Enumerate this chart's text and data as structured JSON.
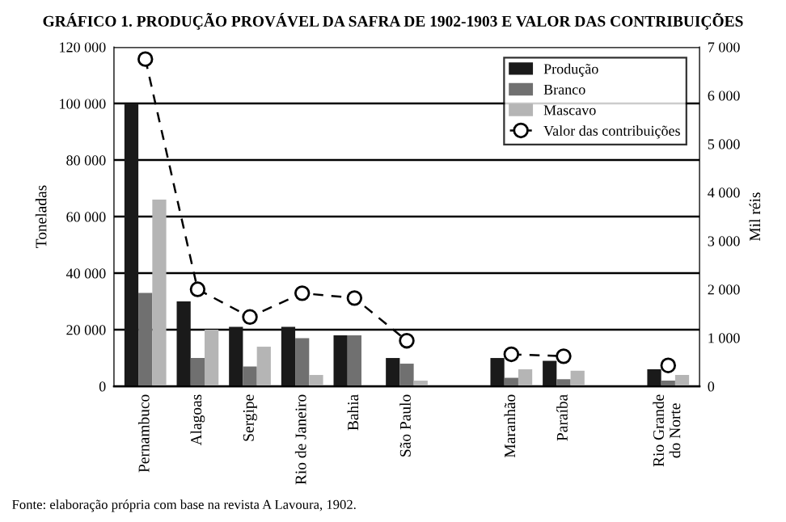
{
  "chart_data": {
    "type": "bar",
    "title": "GRÁFICO 1. PRODUÇÃO PROVÁVEL DA SAFRA DE 1902-1903 E VALOR DAS CONTRIBUIÇÕES",
    "categories": [
      "Pernambuco",
      "Alagoas",
      "Sergipe",
      "Rio de Janeiro",
      "Bahia",
      "São Paulo",
      null,
      "Maranhão",
      "Paraíba",
      null,
      "Rio Grande\ndo Norte"
    ],
    "series": [
      {
        "name": "Produção",
        "color": "#1a1a1a",
        "values": [
          100000,
          30000,
          21000,
          21000,
          18000,
          10000,
          null,
          10000,
          9000,
          null,
          6000
        ]
      },
      {
        "name": "Branco",
        "color": "#707070",
        "values": [
          33000,
          10000,
          7000,
          17000,
          18000,
          8000,
          null,
          3000,
          2500,
          null,
          2000
        ]
      },
      {
        "name": "Mascavo",
        "color": "#b5b5b5",
        "values": [
          66000,
          20000,
          14000,
          4000,
          0,
          2000,
          null,
          6000,
          5500,
          null,
          4000
        ]
      },
      {
        "name": "Valor das contribuições",
        "type": "line",
        "axis": "y2",
        "color": "#000000",
        "marker": "circle",
        "line_style": "dashed",
        "values": [
          6750,
          2000,
          1430,
          1920,
          1820,
          940,
          null,
          660,
          620,
          null,
          430
        ]
      }
    ],
    "ylabel": "Toneladas",
    "y2label": "Mil réis",
    "ylim": [
      0,
      120000
    ],
    "yticks": [
      {
        "value": 0,
        "label": "0"
      },
      {
        "value": 20000,
        "label": "20 000"
      },
      {
        "value": 40000,
        "label": "40 000"
      },
      {
        "value": 60000,
        "label": "60 000"
      },
      {
        "value": 80000,
        "label": "80 000"
      },
      {
        "value": 100000,
        "label": "100 000"
      },
      {
        "value": 120000,
        "label": "120 000"
      }
    ],
    "y2lim": [
      0,
      7000
    ],
    "y2ticks": [
      {
        "value": 0,
        "label": "0"
      },
      {
        "value": 1000,
        "label": "1 000"
      },
      {
        "value": 2000,
        "label": "2 000"
      },
      {
        "value": 3000,
        "label": "3 000"
      },
      {
        "value": 4000,
        "label": "4 000"
      },
      {
        "value": 5000,
        "label": "5 000"
      },
      {
        "value": 6000,
        "label": "6 000"
      },
      {
        "value": 7000,
        "label": "7 000"
      }
    ],
    "grid": "y",
    "legend": "top right",
    "annotations": [
      "Fonte: elaboração própria com base na revista A Lavoura, 1902."
    ]
  }
}
